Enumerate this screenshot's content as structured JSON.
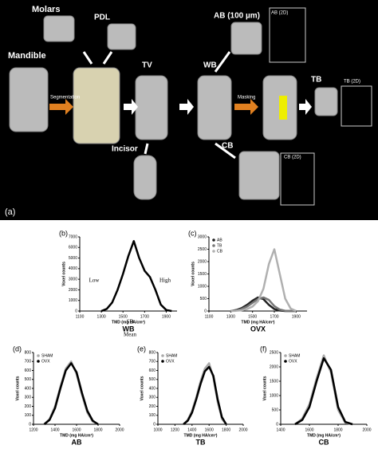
{
  "panel_a": {
    "label": "(a)",
    "labels": [
      "Molars",
      "PDL",
      "Mandible",
      "Segmentation",
      "TV",
      "WB",
      "AB (100 µm)",
      "AB (2D)",
      "Masking",
      "TB",
      "TB (2D)",
      "Incisor",
      "CB",
      "CB (2D)"
    ]
  },
  "chart_data": [
    {
      "type": "line",
      "label": "(b)",
      "name": "WB",
      "xlabel": "TMD (mg HA/cm³)",
      "ylabel": "Voxel counts",
      "xlim": [
        1100,
        2000
      ],
      "ylim": [
        0,
        7000
      ],
      "xticks": [
        1100,
        1300,
        1500,
        1700,
        1900
      ],
      "yticks": [
        0,
        1000,
        2000,
        3000,
        4000,
        5000,
        6000,
        7000
      ],
      "annotations": [
        "Low",
        "Mean",
        "SD",
        "High"
      ],
      "x": [
        1300,
        1350,
        1400,
        1450,
        1500,
        1550,
        1600,
        1650,
        1700,
        1750,
        1800,
        1850,
        1900,
        1950
      ],
      "series": [
        {
          "color": "#000000",
          "values": [
            0,
            200,
            800,
            2000,
            3500,
            5200,
            6600,
            5000,
            3800,
            3200,
            2000,
            600,
            100,
            0
          ]
        }
      ]
    },
    {
      "type": "line",
      "label": "(c)",
      "name": "OVX",
      "xlabel": "TMD (mg HA/cm³)",
      "ylabel": "Voxel counts",
      "xlim": [
        1100,
        2000
      ],
      "ylim": [
        0,
        3000
      ],
      "xticks": [
        1100,
        1300,
        1500,
        1700,
        1900
      ],
      "yticks": [
        0,
        500,
        1000,
        1500,
        2000,
        2500,
        3000
      ],
      "x": [
        1300,
        1350,
        1400,
        1450,
        1500,
        1550,
        1600,
        1650,
        1700,
        1750,
        1800,
        1850,
        1900
      ],
      "series": [
        {
          "name": "AB",
          "color": "#222222",
          "values": [
            0,
            40,
            120,
            250,
            420,
            550,
            480,
            250,
            80,
            20,
            0,
            0,
            0
          ]
        },
        {
          "name": "TB",
          "color": "#777777",
          "values": [
            0,
            20,
            80,
            180,
            330,
            480,
            550,
            450,
            200,
            60,
            10,
            0,
            0
          ]
        },
        {
          "name": "CB",
          "color": "#b0b0b0",
          "values": [
            0,
            10,
            30,
            80,
            180,
            400,
            900,
            1900,
            2500,
            1500,
            500,
            100,
            0
          ]
        }
      ]
    },
    {
      "type": "line",
      "label": "(d)",
      "name": "AB",
      "xlabel": "TMD (mg HA/cm³)",
      "ylabel": "Voxel counts",
      "xlim": [
        1200,
        2000
      ],
      "ylim": [
        0,
        800
      ],
      "xticks": [
        1200,
        1400,
        1600,
        1800,
        2000
      ],
      "yticks": [
        0,
        100,
        200,
        300,
        400,
        500,
        600,
        700,
        800
      ],
      "x": [
        1300,
        1350,
        1400,
        1450,
        1500,
        1550,
        1600,
        1650,
        1700,
        1750,
        1800
      ],
      "series": [
        {
          "name": "SHAM",
          "color": "#aaaaaa",
          "values": [
            0,
            60,
            200,
            420,
            620,
            700,
            560,
            330,
            130,
            30,
            0
          ]
        },
        {
          "name": "OVX",
          "color": "#000000",
          "values": [
            0,
            50,
            180,
            400,
            600,
            680,
            580,
            350,
            150,
            40,
            0
          ]
        }
      ]
    },
    {
      "type": "line",
      "label": "(e)",
      "name": "TB",
      "xlabel": "TMD (mg HA/cm³)",
      "ylabel": "Voxel counts",
      "xlim": [
        1000,
        2000
      ],
      "ylim": [
        0,
        800
      ],
      "xticks": [
        1000,
        1200,
        1400,
        1600,
        1800,
        2000
      ],
      "yticks": [
        0,
        100,
        200,
        300,
        400,
        500,
        600,
        700,
        800
      ],
      "x": [
        1300,
        1350,
        1400,
        1450,
        1500,
        1550,
        1600,
        1650,
        1700,
        1750,
        1800
      ],
      "series": [
        {
          "name": "SHAM",
          "color": "#aaaaaa",
          "values": [
            0,
            50,
            150,
            300,
            480,
            620,
            680,
            520,
            250,
            60,
            0
          ]
        },
        {
          "name": "OVX",
          "color": "#000000",
          "values": [
            0,
            40,
            130,
            280,
            450,
            590,
            640,
            540,
            280,
            80,
            0
          ]
        }
      ]
    },
    {
      "type": "line",
      "label": "(f)",
      "name": "CB",
      "xlabel": "TMD (mg HA/cm³)",
      "ylabel": "Voxel counts",
      "xlim": [
        1400,
        2000
      ],
      "ylim": [
        0,
        2500
      ],
      "xticks": [
        1400,
        1600,
        1800,
        2000
      ],
      "yticks": [
        0,
        500,
        1000,
        1500,
        2000,
        2500
      ],
      "x": [
        1500,
        1550,
        1600,
        1650,
        1700,
        1750,
        1800,
        1850,
        1900
      ],
      "series": [
        {
          "name": "SHAM",
          "color": "#aaaaaa",
          "values": [
            0,
            200,
            700,
            1600,
            2400,
            1800,
            500,
            50,
            0
          ]
        },
        {
          "name": "OVX",
          "color": "#000000",
          "values": [
            0,
            150,
            600,
            1500,
            2300,
            1900,
            600,
            80,
            0
          ]
        }
      ]
    }
  ]
}
